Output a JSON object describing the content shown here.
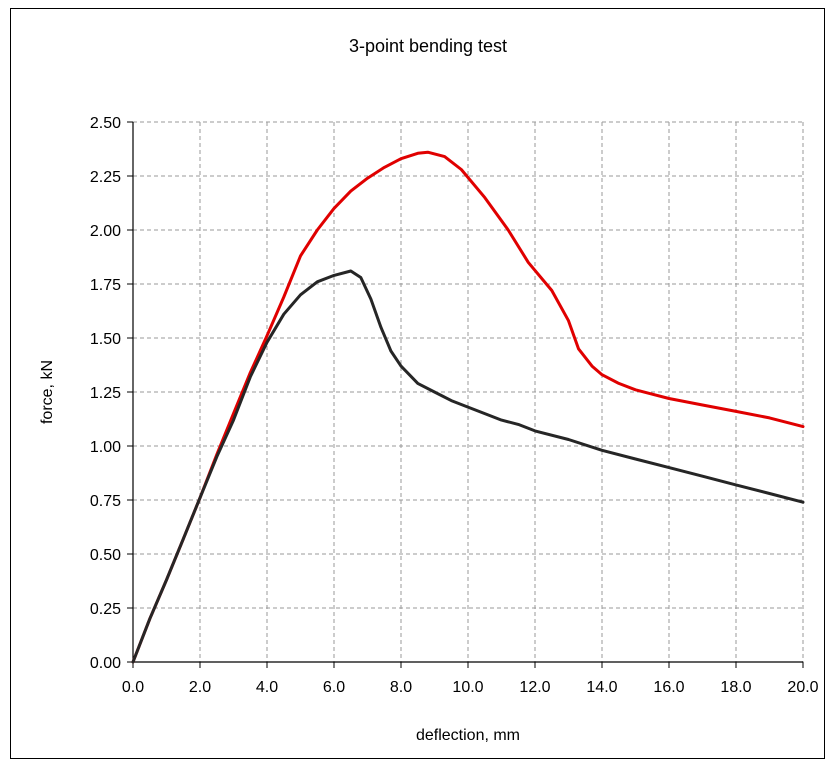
{
  "chart_data": {
    "type": "line",
    "title": "3-point bending test",
    "xlabel": "deflection, mm",
    "ylabel": "force, kN",
    "xlim": [
      0,
      20
    ],
    "ylim": [
      0,
      2.5
    ],
    "x_ticks": [
      "0.0",
      "2.0",
      "4.0",
      "6.0",
      "8.0",
      "10.0",
      "12.0",
      "14.0",
      "16.0",
      "18.0",
      "20.0"
    ],
    "y_ticks": [
      "0.00",
      "0.25",
      "0.50",
      "0.75",
      "1.00",
      "1.25",
      "1.50",
      "1.75",
      "2.00",
      "2.25",
      "2.50"
    ],
    "grid": true,
    "legend": "none",
    "series": [
      {
        "color": "#e00000",
        "points": [
          [
            0,
            0
          ],
          [
            0.5,
            0.2
          ],
          [
            1.0,
            0.38
          ],
          [
            1.5,
            0.57
          ],
          [
            2.0,
            0.76
          ],
          [
            2.5,
            0.96
          ],
          [
            3.0,
            1.15
          ],
          [
            3.5,
            1.34
          ],
          [
            4.0,
            1.51
          ],
          [
            4.5,
            1.69
          ],
          [
            5.0,
            1.88
          ],
          [
            5.5,
            2.0
          ],
          [
            6.0,
            2.1
          ],
          [
            6.5,
            2.18
          ],
          [
            7.0,
            2.24
          ],
          [
            7.5,
            2.29
          ],
          [
            8.0,
            2.33
          ],
          [
            8.5,
            2.355
          ],
          [
            8.8,
            2.36
          ],
          [
            9.3,
            2.34
          ],
          [
            9.8,
            2.28
          ],
          [
            10.5,
            2.15
          ],
          [
            11.2,
            2.0
          ],
          [
            11.8,
            1.85
          ],
          [
            12.5,
            1.72
          ],
          [
            13.0,
            1.58
          ],
          [
            13.3,
            1.45
          ],
          [
            13.7,
            1.37
          ],
          [
            14.0,
            1.33
          ],
          [
            14.5,
            1.29
          ],
          [
            15.0,
            1.26
          ],
          [
            15.5,
            1.24
          ],
          [
            16.0,
            1.22
          ],
          [
            17.0,
            1.19
          ],
          [
            18.0,
            1.16
          ],
          [
            19.0,
            1.13
          ],
          [
            20.0,
            1.09
          ]
        ]
      },
      {
        "color": "#262626",
        "points": [
          [
            0,
            0
          ],
          [
            0.5,
            0.2
          ],
          [
            1.0,
            0.38
          ],
          [
            1.5,
            0.57
          ],
          [
            2.0,
            0.76
          ],
          [
            2.5,
            0.95
          ],
          [
            3.0,
            1.12
          ],
          [
            3.5,
            1.32
          ],
          [
            4.0,
            1.48
          ],
          [
            4.5,
            1.61
          ],
          [
            5.0,
            1.7
          ],
          [
            5.5,
            1.76
          ],
          [
            6.0,
            1.79
          ],
          [
            6.5,
            1.81
          ],
          [
            6.8,
            1.78
          ],
          [
            7.1,
            1.68
          ],
          [
            7.4,
            1.55
          ],
          [
            7.7,
            1.44
          ],
          [
            8.0,
            1.37
          ],
          [
            8.5,
            1.29
          ],
          [
            9.0,
            1.25
          ],
          [
            9.5,
            1.21
          ],
          [
            10.0,
            1.18
          ],
          [
            10.5,
            1.15
          ],
          [
            11.0,
            1.12
          ],
          [
            11.5,
            1.1
          ],
          [
            12.0,
            1.07
          ],
          [
            13.0,
            1.03
          ],
          [
            14.0,
            0.98
          ],
          [
            15.0,
            0.94
          ],
          [
            16.0,
            0.9
          ],
          [
            17.0,
            0.86
          ],
          [
            18.0,
            0.82
          ],
          [
            19.0,
            0.78
          ],
          [
            20.0,
            0.74
          ]
        ]
      }
    ]
  }
}
